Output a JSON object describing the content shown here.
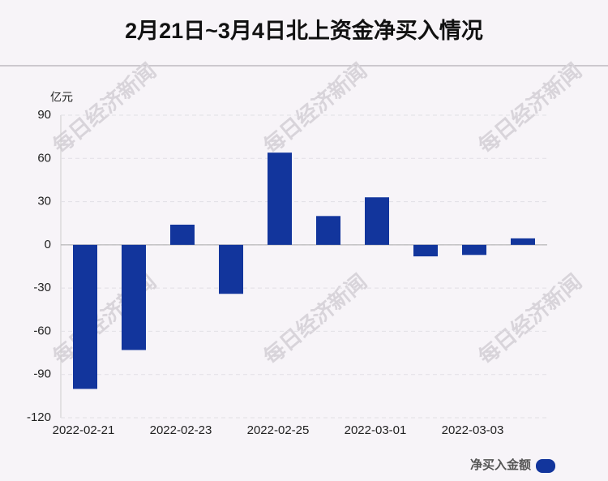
{
  "chart_data": {
    "type": "bar",
    "title": "2月21日~3月4日北上资金净买入情况",
    "y_unit": "亿元",
    "watermark": "每日经济新闻",
    "categories": [
      "2022-02-21",
      null,
      "2022-02-23",
      null,
      "2022-02-25",
      null,
      "2022-03-01",
      null,
      "2022-03-03",
      null
    ],
    "series": [
      {
        "name": "净买入金额",
        "color": "#12359c",
        "values": [
          -100,
          -73,
          14,
          -34,
          64,
          20,
          33,
          -8,
          -7,
          4.5
        ]
      }
    ],
    "ylim": [
      -120,
      90
    ],
    "yticks": [
      -120,
      -90,
      -60,
      -30,
      0,
      30,
      60,
      90
    ],
    "grid": true,
    "legend": "bottom-right"
  }
}
